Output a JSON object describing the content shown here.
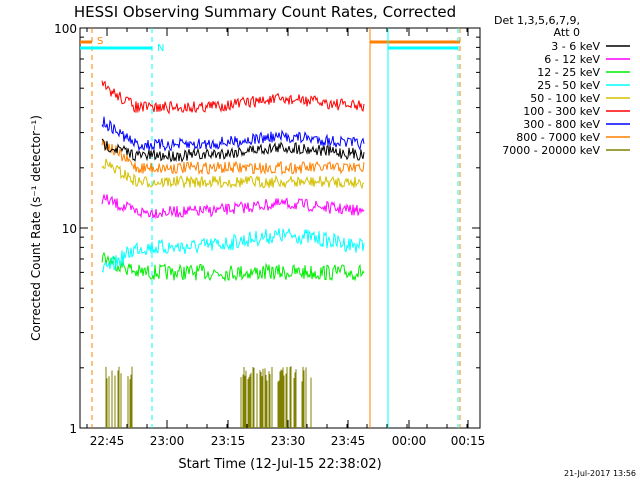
{
  "chart_data": {
    "type": "line",
    "title": "HESSI Observing Summary Count Rates, Corrected",
    "xlabel": "Start Time (12-Jul-15 22:38:02)",
    "ylabel": "Corrected Count Rate (s⁻¹ detector⁻¹)",
    "y_scale": "log",
    "ylim": [
      1,
      100
    ],
    "xlim_minutes": [
      22.633,
      24.283
    ],
    "x_ticks": [
      "22:45",
      "23:00",
      "23:15",
      "23:30",
      "23:45",
      "00:00",
      "00:15"
    ],
    "y_ticks": [
      "1",
      "10",
      "100"
    ],
    "legend_header": [
      "Det 1,3,5,6,7,9,",
      "Att 0"
    ],
    "series": [
      {
        "name": "3 - 6 keV",
        "color": "#000000",
        "level": 23
      },
      {
        "name": "6 - 12 keV",
        "color": "#ff00ff",
        "level": 12
      },
      {
        "name": "12 - 25 keV",
        "color": "#00ee00",
        "level": 6
      },
      {
        "name": "25 - 50 keV",
        "color": "#00ffff",
        "level": 8
      },
      {
        "name": "50 - 100 keV",
        "color": "#d4c000",
        "level": 17
      },
      {
        "name": "100 - 300 keV",
        "color": "#ff0000",
        "level": 40
      },
      {
        "name": "300 - 800 keV",
        "color": "#0000ff",
        "level": 26
      },
      {
        "name": "800 - 7000 keV",
        "color": "#ff8000",
        "level": 20
      },
      {
        "name": "7000 - 20000 keV",
        "color": "#808000",
        "level": 1.7
      }
    ],
    "flags": [
      {
        "name": "S",
        "color": "#ff8000"
      },
      {
        "name": "N",
        "color": "#00ffff"
      }
    ],
    "timestamp": "21-Jul-2017 13:56"
  }
}
